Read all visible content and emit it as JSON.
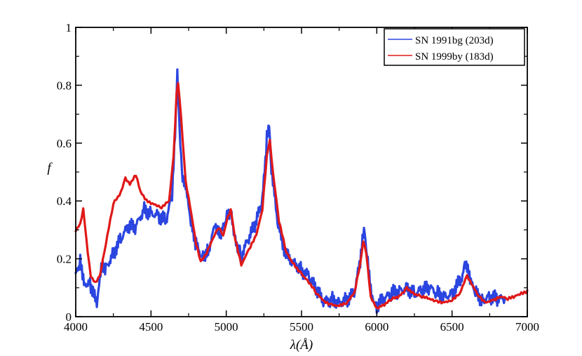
{
  "chart_data": {
    "type": "line",
    "title": "",
    "xlabel": "λ(Å)",
    "ylabel": "f",
    "xlim": [
      4000,
      7000
    ],
    "ylim": [
      0,
      1
    ],
    "x_ticks": [
      "4000",
      "4500",
      "5000",
      "5500",
      "6000",
      "6500",
      "7000"
    ],
    "y_ticks": [
      "0",
      "0.2",
      "0.4",
      "0.6",
      "0.8",
      "1"
    ],
    "grid": false,
    "legend_position": "top-right",
    "series": [
      {
        "name": "SN 1991bg (203d)",
        "color": "#2b45e0",
        "noisy": true,
        "points": [
          [
            4000,
            0.14
          ],
          [
            4030,
            0.19
          ],
          [
            4060,
            0.12
          ],
          [
            4100,
            0.11
          ],
          [
            4140,
            0.04
          ],
          [
            4170,
            0.16
          ],
          [
            4200,
            0.17
          ],
          [
            4250,
            0.22
          ],
          [
            4300,
            0.27
          ],
          [
            4350,
            0.31
          ],
          [
            4400,
            0.31
          ],
          [
            4450,
            0.37
          ],
          [
            4500,
            0.36
          ],
          [
            4550,
            0.35
          ],
          [
            4600,
            0.33
          ],
          [
            4640,
            0.42
          ],
          [
            4660,
            0.62
          ],
          [
            4675,
            0.83
          ],
          [
            4690,
            0.64
          ],
          [
            4710,
            0.49
          ],
          [
            4730,
            0.46
          ],
          [
            4760,
            0.33
          ],
          [
            4800,
            0.25
          ],
          [
            4840,
            0.21
          ],
          [
            4880,
            0.23
          ],
          [
            4930,
            0.32
          ],
          [
            4960,
            0.27
          ],
          [
            5000,
            0.34
          ],
          [
            5030,
            0.36
          ],
          [
            5060,
            0.27
          ],
          [
            5100,
            0.21
          ],
          [
            5150,
            0.27
          ],
          [
            5200,
            0.33
          ],
          [
            5240,
            0.4
          ],
          [
            5270,
            0.62
          ],
          [
            5285,
            0.67
          ],
          [
            5300,
            0.52
          ],
          [
            5340,
            0.32
          ],
          [
            5400,
            0.21
          ],
          [
            5450,
            0.19
          ],
          [
            5500,
            0.16
          ],
          [
            5550,
            0.14
          ],
          [
            5600,
            0.09
          ],
          [
            5650,
            0.05
          ],
          [
            5700,
            0.06
          ],
          [
            5750,
            0.05
          ],
          [
            5800,
            0.06
          ],
          [
            5850,
            0.08
          ],
          [
            5890,
            0.19
          ],
          [
            5915,
            0.3
          ],
          [
            5940,
            0.18
          ],
          [
            5970,
            0.07
          ],
          [
            6000,
            0.04
          ],
          [
            6050,
            0.06
          ],
          [
            6100,
            0.08
          ],
          [
            6150,
            0.09
          ],
          [
            6200,
            0.1
          ],
          [
            6250,
            0.08
          ],
          [
            6300,
            0.09
          ],
          [
            6350,
            0.1
          ],
          [
            6400,
            0.08
          ],
          [
            6450,
            0.07
          ],
          [
            6500,
            0.08
          ],
          [
            6560,
            0.13
          ],
          [
            6590,
            0.19
          ],
          [
            6620,
            0.12
          ],
          [
            6660,
            0.08
          ],
          [
            6700,
            0.06
          ],
          [
            6750,
            0.07
          ],
          [
            6800,
            0.06
          ],
          [
            6850,
            0.06
          ]
        ]
      },
      {
        "name": "SN 1999by (183d)",
        "color": "#e01818",
        "noisy": false,
        "points": [
          [
            4000,
            0.3
          ],
          [
            4030,
            0.32
          ],
          [
            4050,
            0.37
          ],
          [
            4080,
            0.22
          ],
          [
            4100,
            0.14
          ],
          [
            4130,
            0.12
          ],
          [
            4160,
            0.14
          ],
          [
            4200,
            0.25
          ],
          [
            4250,
            0.39
          ],
          [
            4300,
            0.43
          ],
          [
            4330,
            0.48
          ],
          [
            4360,
            0.46
          ],
          [
            4400,
            0.49
          ],
          [
            4430,
            0.43
          ],
          [
            4470,
            0.4
          ],
          [
            4520,
            0.39
          ],
          [
            4570,
            0.38
          ],
          [
            4620,
            0.4
          ],
          [
            4650,
            0.55
          ],
          [
            4670,
            0.77
          ],
          [
            4680,
            0.81
          ],
          [
            4700,
            0.69
          ],
          [
            4730,
            0.47
          ],
          [
            4760,
            0.38
          ],
          [
            4800,
            0.25
          ],
          [
            4830,
            0.19
          ],
          [
            4860,
            0.21
          ],
          [
            4900,
            0.26
          ],
          [
            4950,
            0.31
          ],
          [
            4980,
            0.28
          ],
          [
            5010,
            0.34
          ],
          [
            5030,
            0.37
          ],
          [
            5060,
            0.27
          ],
          [
            5100,
            0.18
          ],
          [
            5150,
            0.23
          ],
          [
            5200,
            0.28
          ],
          [
            5240,
            0.37
          ],
          [
            5270,
            0.56
          ],
          [
            5290,
            0.61
          ],
          [
            5310,
            0.5
          ],
          [
            5350,
            0.33
          ],
          [
            5400,
            0.22
          ],
          [
            5450,
            0.18
          ],
          [
            5500,
            0.15
          ],
          [
            5550,
            0.12
          ],
          [
            5600,
            0.08
          ],
          [
            5650,
            0.05
          ],
          [
            5700,
            0.04
          ],
          [
            5750,
            0.04
          ],
          [
            5800,
            0.05
          ],
          [
            5850,
            0.08
          ],
          [
            5890,
            0.18
          ],
          [
            5910,
            0.26
          ],
          [
            5930,
            0.22
          ],
          [
            5960,
            0.07
          ],
          [
            6000,
            0.03
          ],
          [
            6050,
            0.04
          ],
          [
            6100,
            0.06
          ],
          [
            6150,
            0.07
          ],
          [
            6200,
            0.1
          ],
          [
            6250,
            0.08
          ],
          [
            6300,
            0.07
          ],
          [
            6350,
            0.06
          ],
          [
            6400,
            0.05
          ],
          [
            6450,
            0.05
          ],
          [
            6500,
            0.06
          ],
          [
            6550,
            0.08
          ],
          [
            6600,
            0.14
          ],
          [
            6630,
            0.11
          ],
          [
            6680,
            0.07
          ],
          [
            6720,
            0.05
          ],
          [
            6780,
            0.06
          ],
          [
            6820,
            0.07
          ],
          [
            6870,
            0.06
          ],
          [
            6920,
            0.07
          ],
          [
            6960,
            0.08
          ],
          [
            7000,
            0.09
          ]
        ]
      }
    ]
  }
}
